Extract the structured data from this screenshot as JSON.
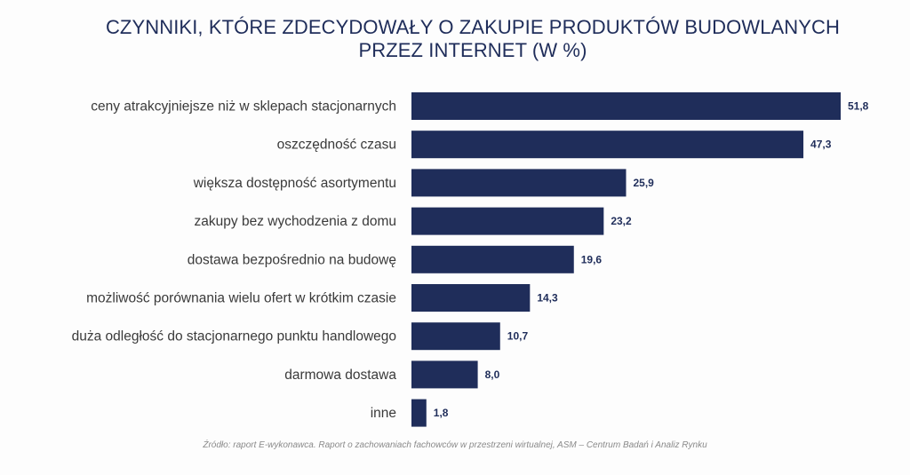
{
  "chart_data": {
    "type": "bar",
    "orientation": "horizontal",
    "title_lines": [
      "CZYNNIKI, KTÓRE ZDECYDOWAŁY O ZAKUPIE PRODUKTÓW BUDOWLANYCH",
      "PRZEZ INTERNET (W %)"
    ],
    "categories": [
      "ceny atrakcyjniejsze niż w sklepach stacjonarnych",
      "oszczędność czasu",
      "większa dostępność asortymentu",
      "zakupy bez wychodzenia z domu",
      "dostawa bezpośrednio na budowę",
      "możliwość porównania wielu ofert w krótkim czasie",
      "duża odległość do stacjonarnego punktu handlowego",
      "darmowa dostawa",
      "inne"
    ],
    "values": [
      51.8,
      47.3,
      25.9,
      23.2,
      19.6,
      14.3,
      10.7,
      8.0,
      1.8
    ],
    "value_labels": [
      "51,8",
      "47,3",
      "25,9",
      "23,2",
      "19,6",
      "14,3",
      "10,7",
      "8,0",
      "1,8"
    ],
    "xlim": [
      0,
      51.8
    ],
    "grid": false,
    "legend": "none",
    "bar_color": "#1f2d5a",
    "source": "Źródło: raport E-wykonawca. Raport o zachowaniach fachowców w przestrzeni wirtualnej, ASM – Centrum Badań i Analiz Rynku"
  }
}
